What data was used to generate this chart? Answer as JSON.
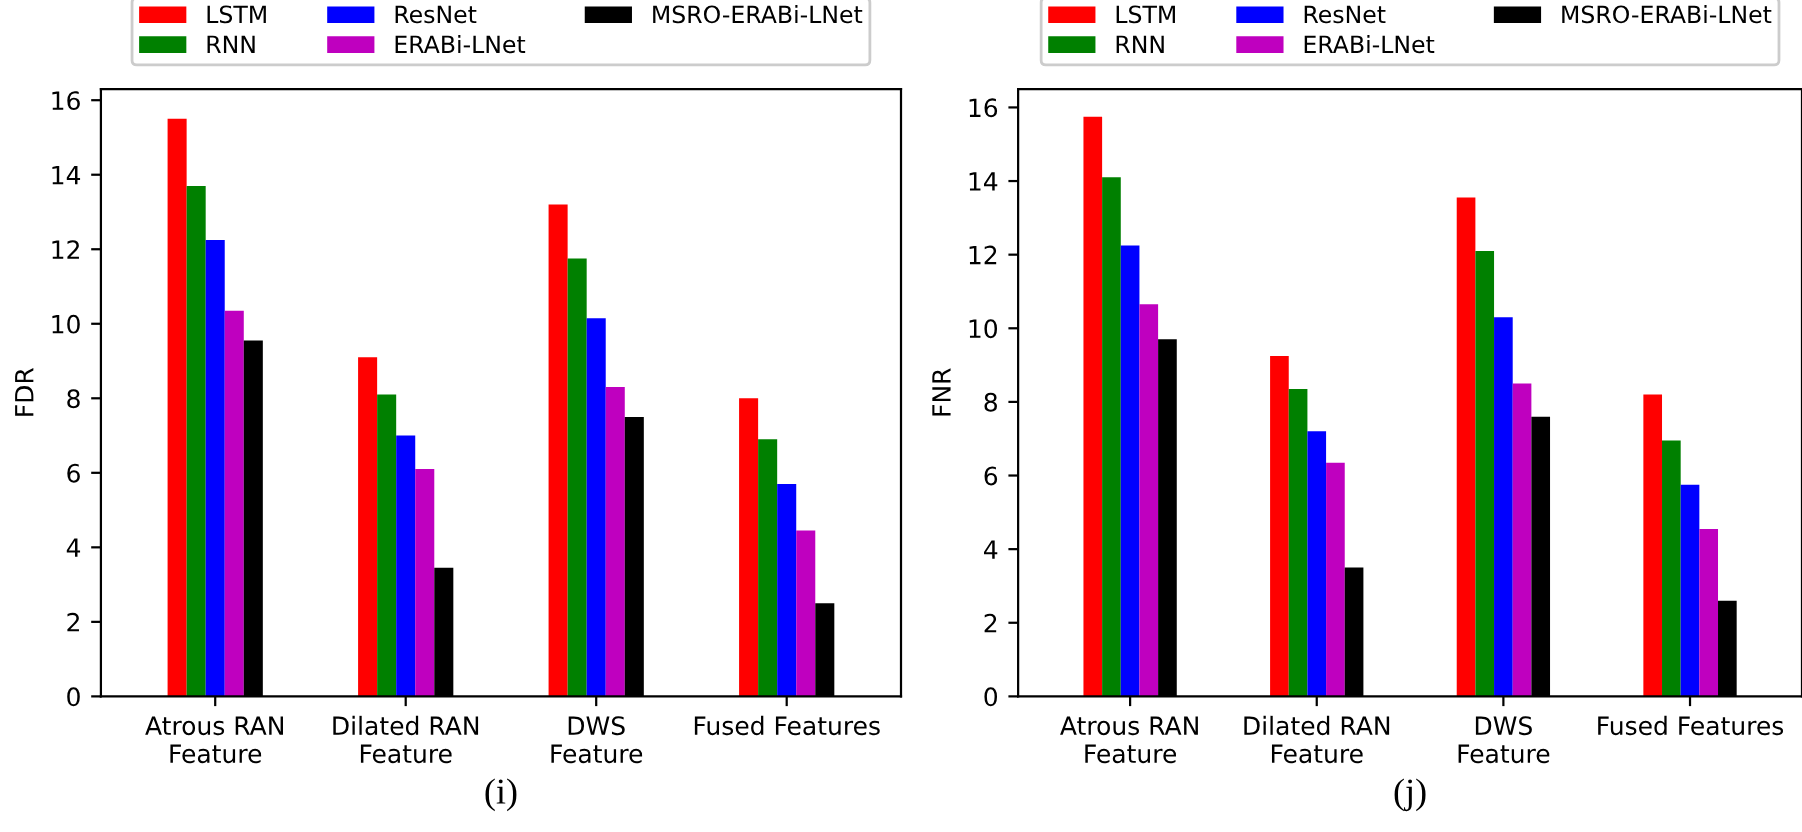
{
  "chart_data": [
    {
      "type": "bar",
      "ylabel": "FDR",
      "categories": [
        "Atrous RAN\nFeature",
        "Dilated RAN\nFeature",
        "DWS\nFeature",
        "Fused Features"
      ],
      "ylim": [
        0,
        16.3
      ],
      "yticks": [
        0,
        2,
        4,
        6,
        8,
        10,
        12,
        14,
        16
      ],
      "legend": "top",
      "grid": false,
      "annotations": [
        "(i)"
      ],
      "series": [
        {
          "name": "LSTM",
          "color": "#ff0000",
          "values": [
            15.5,
            9.1,
            13.2,
            8.0
          ]
        },
        {
          "name": "RNN",
          "color": "#008000",
          "values": [
            13.7,
            8.1,
            11.75,
            6.9
          ]
        },
        {
          "name": "ResNet",
          "color": "#0000ff",
          "values": [
            12.25,
            7.0,
            10.15,
            5.7
          ]
        },
        {
          "name": "ERABi-LNet",
          "color": "#bf00bf",
          "values": [
            10.35,
            6.1,
            8.3,
            4.45
          ]
        },
        {
          "name": "MSRO-ERABi-LNet",
          "color": "#000000",
          "values": [
            9.55,
            3.45,
            7.5,
            2.5
          ]
        }
      ]
    },
    {
      "type": "bar",
      "ylabel": "FNR",
      "categories": [
        "Atrous RAN\nFeature",
        "Dilated RAN\nFeature",
        "DWS\nFeature",
        "Fused Features"
      ],
      "ylim": [
        0,
        16.5
      ],
      "yticks": [
        0,
        2,
        4,
        6,
        8,
        10,
        12,
        14,
        16
      ],
      "legend": "top",
      "grid": false,
      "annotations": [
        "(j)"
      ],
      "series": [
        {
          "name": "LSTM",
          "color": "#ff0000",
          "values": [
            15.75,
            9.25,
            13.55,
            8.2
          ]
        },
        {
          "name": "RNN",
          "color": "#008000",
          "values": [
            14.1,
            8.35,
            12.1,
            6.95
          ]
        },
        {
          "name": "ResNet",
          "color": "#0000ff",
          "values": [
            12.25,
            7.2,
            10.3,
            5.75
          ]
        },
        {
          "name": "ERABi-LNet",
          "color": "#bf00bf",
          "values": [
            10.65,
            6.35,
            8.5,
            4.55
          ]
        },
        {
          "name": "MSRO-ERABi-LNet",
          "color": "#000000",
          "values": [
            9.7,
            3.5,
            7.6,
            2.6
          ]
        }
      ]
    }
  ]
}
